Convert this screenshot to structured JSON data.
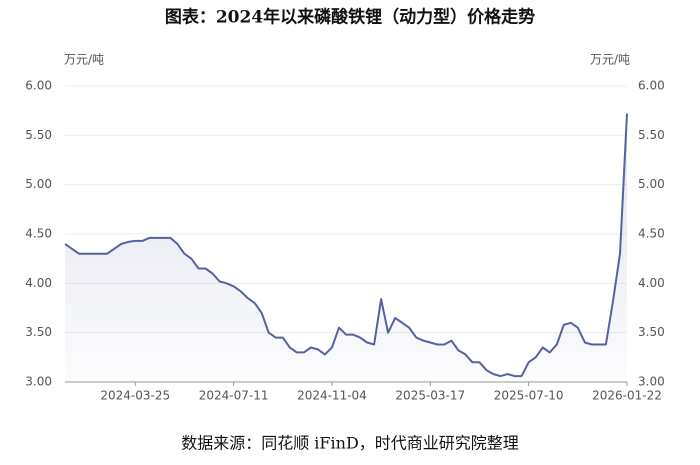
{
  "chart_data": {
    "type": "line",
    "title": "图表：2024年以来磷酸铁锂（动力型）价格走势",
    "y_unit": "万元/吨",
    "y2_unit": "万元/吨",
    "source": "数据来源：同花顺 iFinD，时代商业研究院整理",
    "categories": [
      null,
      null,
      null,
      null,
      null,
      null,
      null,
      null,
      null,
      null,
      "2024-03-25",
      null,
      null,
      null,
      null,
      null,
      null,
      null,
      null,
      null,
      null,
      null,
      null,
      null,
      "2024-07-11",
      null,
      null,
      null,
      null,
      null,
      null,
      null,
      null,
      null,
      null,
      null,
      null,
      null,
      "2024-11-04",
      null,
      null,
      null,
      null,
      null,
      null,
      null,
      null,
      null,
      null,
      null,
      null,
      null,
      "2025-03-17",
      null,
      null,
      null,
      null,
      null,
      null,
      null,
      null,
      null,
      null,
      null,
      null,
      null,
      "2025-07-10",
      null,
      null,
      null,
      null,
      null,
      null,
      null,
      null,
      null,
      null,
      null,
      null,
      null,
      "2026-01-22"
    ],
    "series": [
      {
        "color": "#5561a0",
        "values": [
          4.4,
          4.35,
          4.3,
          4.3,
          4.3,
          4.3,
          4.3,
          4.35,
          4.4,
          4.42,
          4.43,
          4.43,
          4.46,
          4.46,
          4.46,
          4.46,
          4.4,
          4.3,
          4.25,
          4.15,
          4.15,
          4.1,
          4.02,
          4.0,
          3.97,
          3.92,
          3.85,
          3.8,
          3.7,
          3.5,
          3.45,
          3.45,
          3.35,
          3.3,
          3.3,
          3.35,
          3.33,
          3.28,
          3.35,
          3.55,
          3.48,
          3.48,
          3.45,
          3.4,
          3.38,
          3.84,
          3.5,
          3.65,
          3.6,
          3.55,
          3.45,
          3.42,
          3.4,
          3.38,
          3.38,
          3.42,
          3.32,
          3.28,
          3.2,
          3.2,
          3.12,
          3.08,
          3.06,
          3.08,
          3.06,
          3.06,
          3.2,
          3.25,
          3.35,
          3.3,
          3.38,
          3.58,
          3.6,
          3.55,
          3.4,
          3.38,
          3.38,
          3.38,
          3.82,
          4.3,
          5.72
        ]
      }
    ],
    "ylim": [
      3,
      6
    ],
    "yticks": [
      {
        "value": 3,
        "label": "3.00"
      },
      {
        "value": 3.5,
        "label": "3.50"
      },
      {
        "value": 4,
        "label": "4.00"
      },
      {
        "value": 4.5,
        "label": "4.50"
      },
      {
        "value": 5,
        "label": "5.00"
      },
      {
        "value": 5.5,
        "label": "5.50"
      },
      {
        "value": 6,
        "label": "6.00"
      }
    ],
    "y2lim": [
      3,
      6
    ],
    "y2ticks": [
      {
        "value": 3,
        "label": "3.00"
      },
      {
        "value": 3.5,
        "label": "3.50"
      },
      {
        "value": 4,
        "label": "4.00"
      },
      {
        "value": 4.5,
        "label": "4.50"
      },
      {
        "value": 5,
        "label": "5.00"
      },
      {
        "value": 5.5,
        "label": "5.50"
      },
      {
        "value": 6,
        "label": "6.00"
      }
    ],
    "grid": true
  }
}
